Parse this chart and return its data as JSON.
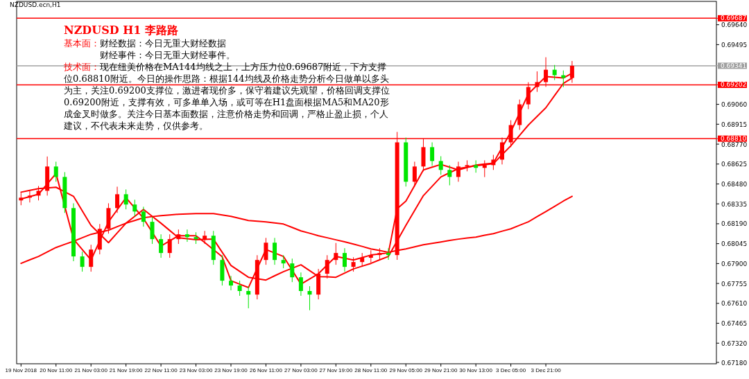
{
  "chart_data": {
    "type": "candlestick",
    "title": "NZDUSD H1 李路路",
    "annotations": [
      "NZDUSD.ecn,H1",
      "基本面：",
      "财经数据：今日无重大财经数据",
      "财经事件：今日无重大财经事件。",
      "技术面：",
      "现在纽美价格在MA144均线之上，上方压力位0.69687附近，下方支撑位0.68810附近。今日的操作思路：根据144均线及价格走势分析今日做单以多头为主，关注0.69200支撑位，激进者现价多，保守着建议先观望，价格回调支撑位0.69200附近，支撑有效，可多单单入场，或可等在H1盘面根据MA5和MA20形成金叉时做多。关注今日基本面数据，注意价格走势和回调，严格止盈止损，个人建议，不代表未来走势，仅供参考。"
    ],
    "categories": [
      "19 Nov 2018",
      null,
      null,
      null,
      "20 Nov 11:00",
      null,
      null,
      null,
      "21 Nov 03:00",
      null,
      null,
      null,
      "21 Nov 19:00",
      null,
      null,
      null,
      "22 Nov 11:00",
      null,
      null,
      null,
      "23 Nov 03:00",
      null,
      null,
      null,
      "23 Nov 19:00",
      null,
      null,
      null,
      "26 Nov 11:00",
      null,
      null,
      null,
      "27 Nov 03:00",
      null,
      null,
      null,
      "27 Nov 19:00",
      null,
      null,
      null,
      "28 Nov 11:00",
      null,
      null,
      null,
      "29 Nov 05:00",
      null,
      null,
      null,
      "29 Nov 21:00",
      null,
      null,
      null,
      "30 Nov 13:00",
      null,
      null,
      null,
      "3 Dec 05:00",
      null,
      null,
      null,
      "3 Dec 21:00",
      null,
      null,
      null,
      null,
      null,
      null,
      null,
      null,
      null,
      null,
      null,
      null,
      null,
      null,
      null,
      null,
      null,
      null,
      null
    ],
    "ohlc": [
      [
        0.6836,
        0.68415,
        0.68325,
        0.6838
      ],
      [
        0.6838,
        0.6843,
        0.68345,
        0.68395
      ],
      [
        0.68395,
        0.68465,
        0.6836,
        0.6843
      ],
      [
        0.6843,
        0.6868,
        0.68395,
        0.68607
      ],
      [
        0.68607,
        0.68642,
        0.68496,
        0.68531
      ],
      [
        0.68531,
        0.68566,
        0.68269,
        0.68304
      ],
      [
        0.68304,
        0.68339,
        0.67917,
        0.67952
      ],
      [
        0.67952,
        0.67987,
        0.67841,
        0.67876
      ],
      [
        0.67876,
        0.68037,
        0.67841,
        0.68002
      ],
      [
        0.68002,
        0.68188,
        0.67967,
        0.68153
      ],
      [
        0.68153,
        0.68339,
        0.68118,
        0.68304
      ],
      [
        0.68304,
        0.6846,
        0.68269,
        0.68405
      ],
      [
        0.68405,
        0.6844,
        0.68295,
        0.6833
      ],
      [
        0.6833,
        0.68365,
        0.68244,
        0.68279
      ],
      [
        0.68279,
        0.68314,
        0.68169,
        0.68204
      ],
      [
        0.68204,
        0.68239,
        0.68043,
        0.68078
      ],
      [
        0.68078,
        0.68113,
        0.67942,
        0.67977
      ],
      [
        0.67977,
        0.68113,
        0.67942,
        0.68078
      ],
      [
        0.68078,
        0.68148,
        0.68043,
        0.68113
      ],
      [
        0.68113,
        0.68148,
        0.68058,
        0.68093
      ],
      [
        0.68093,
        0.68128,
        0.68043,
        0.68078
      ],
      [
        0.68078,
        0.68138,
        0.68043,
        0.68103
      ],
      [
        0.68103,
        0.68138,
        0.67891,
        0.67926
      ],
      [
        0.67926,
        0.67961,
        0.6774,
        0.67775
      ],
      [
        0.67775,
        0.6781,
        0.67705,
        0.6774
      ],
      [
        0.6774,
        0.67775,
        0.67665,
        0.677
      ],
      [
        0.677,
        0.67735,
        0.67574,
        0.67674
      ],
      [
        0.67674,
        0.67961,
        0.67639,
        0.67926
      ],
      [
        0.67926,
        0.68087,
        0.67891,
        0.68052
      ],
      [
        0.68052,
        0.68087,
        0.67891,
        0.67926
      ],
      [
        0.67926,
        0.67961,
        0.67866,
        0.67901
      ],
      [
        0.67901,
        0.67936,
        0.67765,
        0.678
      ],
      [
        0.678,
        0.67835,
        0.67665,
        0.677
      ],
      [
        0.677,
        0.67735,
        0.6756,
        0.67674
      ],
      [
        0.67674,
        0.67861,
        0.67639,
        0.67826
      ],
      [
        0.67826,
        0.67961,
        0.67791,
        0.67926
      ],
      [
        0.67926,
        0.6805,
        0.67891,
        0.67977
      ],
      [
        0.67977,
        0.68012,
        0.67841,
        0.67876
      ],
      [
        0.67876,
        0.67946,
        0.67841,
        0.67911
      ],
      [
        0.67911,
        0.67977,
        0.67876,
        0.67942
      ],
      [
        0.67942,
        0.67997,
        0.67907,
        0.67962
      ],
      [
        0.67962,
        0.68012,
        0.67927,
        0.67977
      ],
      [
        0.67977,
        0.68012,
        0.67927,
        0.67962
      ],
      [
        0.67962,
        0.68859,
        0.67927,
        0.68783
      ],
      [
        0.68783,
        0.68818,
        0.68461,
        0.68496
      ],
      [
        0.68496,
        0.68642,
        0.68461,
        0.68607
      ],
      [
        0.68607,
        0.6881,
        0.68572,
        0.68748
      ],
      [
        0.68748,
        0.68783,
        0.68612,
        0.68647
      ],
      [
        0.68647,
        0.68682,
        0.68547,
        0.68582
      ],
      [
        0.68582,
        0.68617,
        0.6847,
        0.68531
      ],
      [
        0.68531,
        0.68642,
        0.68496,
        0.68607
      ],
      [
        0.68607,
        0.68652,
        0.68572,
        0.68617
      ],
      [
        0.68617,
        0.68652,
        0.68562,
        0.68597
      ],
      [
        0.68597,
        0.68652,
        0.6853,
        0.68617
      ],
      [
        0.68617,
        0.68692,
        0.68582,
        0.68657
      ],
      [
        0.68657,
        0.68818,
        0.68622,
        0.68783
      ],
      [
        0.68783,
        0.68944,
        0.68748,
        0.68909
      ],
      [
        0.68909,
        0.69095,
        0.68874,
        0.6906
      ],
      [
        0.6906,
        0.69221,
        0.69025,
        0.69186
      ],
      [
        0.69186,
        0.693,
        0.69151,
        0.69222
      ],
      [
        0.69222,
        0.69403,
        0.69187,
        0.69312
      ],
      [
        0.69312,
        0.69347,
        0.69237,
        0.69272
      ],
      [
        0.69272,
        0.69307,
        0.69185,
        0.69252
      ],
      [
        0.69252,
        0.69376,
        0.69217,
        0.69341
      ],
      null,
      null,
      null,
      null,
      null,
      null,
      null,
      null,
      null,
      null,
      null,
      null,
      null,
      null,
      null,
      null
    ],
    "colors": [
      "#ff0000",
      "#ff0000",
      "#ff0000",
      "#ff0000",
      "#00e600",
      "#00e600",
      "#00e600",
      "#00e600",
      "#ff0000",
      "#ff0000",
      "#ff0000",
      "#ff0000",
      "#00e600",
      "#00e600",
      "#00e600",
      "#00e600",
      "#00e600",
      "#ff0000",
      "#ff0000",
      "#00e600",
      "#00e600",
      "#ff0000",
      "#00e600",
      "#00e600",
      "#00e600",
      "#00e600",
      "#00e600",
      "#ff0000",
      "#ff0000",
      "#00e600",
      "#00e600",
      "#00e600",
      "#00e600",
      "#00e600",
      "#ff0000",
      "#ff0000",
      "#ff0000",
      "#00e600",
      "#ff0000",
      "#ff0000",
      "#ff0000",
      "#ff0000",
      "#00e600",
      "#ff0000",
      "#00e600",
      "#ff0000",
      "#ff0000",
      "#00e600",
      "#00e600",
      "#00e600",
      "#ff0000",
      "#ff0000",
      "#00e600",
      "#ff0000",
      "#ff0000",
      "#ff0000",
      "#ff0000",
      "#ff0000",
      "#ff0000",
      "#ff0000",
      "#ff0000",
      "#00e600",
      "#00e600",
      "#ff0000",
      null,
      null,
      null,
      null,
      null,
      null,
      null,
      null,
      null,
      null,
      null,
      null,
      null,
      null,
      null,
      null
    ],
    "series": [
      {
        "type": "line",
        "color": "#ff0000",
        "values": [
          0.6837,
          0.68388,
          0.68405,
          0.6848,
          0.68556,
          0.68317,
          0.68078,
          0.68002,
          0.67926,
          0.68065,
          0.68204,
          0.68292,
          0.6838,
          0.68305,
          0.68229,
          0.68128,
          0.68027,
          0.68065,
          0.68103,
          0.68103,
          0.68103,
          0.68053,
          0.68002,
          0.6795,
          0.67775,
          0.6775,
          0.67725,
          0.67864,
          0.68002,
          0.67977,
          0.67952,
          0.67851,
          0.6775,
          0.67788,
          0.67826,
          0.67889,
          0.67952,
          0.67939,
          0.67926,
          0.67944,
          0.67962,
          0.6797,
          0.67977,
          0.683,
          0.68355,
          0.68469,
          0.68582,
          0.68602,
          0.68622,
          0.68602,
          0.68582,
          0.686,
          0.68617,
          0.68625,
          0.68632,
          0.68746,
          0.68859,
          0.68998,
          0.69136,
          0.69199,
          0.69262,
          0.69257,
          0.69252,
          0.69287,
          null,
          null,
          null,
          null,
          null,
          null,
          null,
          null,
          null,
          null,
          null,
          null,
          null,
          null,
          null,
          null
        ]
      },
      {
        "type": "line",
        "color": "#ff0000",
        "values": [
          0.6842,
          0.68433,
          0.68446,
          0.68451,
          0.68456,
          0.68423,
          0.6839,
          0.68284,
          0.68178,
          0.68115,
          0.68052,
          0.68123,
          0.68194,
          0.68244,
          0.68294,
          0.68244,
          0.68194,
          0.68141,
          0.68088,
          0.68081,
          0.68073,
          0.68076,
          0.68078,
          0.67982,
          0.67886,
          0.67843,
          0.678,
          0.6779,
          0.6778,
          0.67811,
          0.67841,
          0.67866,
          0.67891,
          0.67848,
          0.67805,
          0.67803,
          0.678,
          0.67831,
          0.67861,
          0.67881,
          0.67901,
          0.67927,
          0.67952,
          0.68065,
          0.68178,
          0.68287,
          0.68395,
          0.68463,
          0.68531,
          0.68562,
          0.68592,
          0.68602,
          0.68612,
          0.6862,
          0.68627,
          0.68693,
          0.68758,
          0.68834,
          0.68909,
          0.68972,
          0.69035,
          0.69124,
          0.69212,
          0.69252,
          null,
          null,
          null,
          null,
          null,
          null,
          null,
          null,
          null,
          null,
          null,
          null,
          null,
          null,
          null,
          null
        ]
      },
      {
        "type": "line",
        "color": "#ff0000",
        "values": [
          0.67901,
          0.67927,
          0.67952,
          0.67985,
          0.68017,
          0.6804,
          0.68062,
          0.68088,
          0.68113,
          0.68128,
          0.68143,
          0.68169,
          0.68194,
          0.68214,
          0.68234,
          0.68242,
          0.68249,
          0.68254,
          0.68259,
          0.68262,
          0.68264,
          0.68264,
          0.68264,
          0.68254,
          0.68244,
          0.68229,
          0.68214,
          0.68209,
          0.68204,
          0.68196,
          0.68188,
          0.68163,
          0.68138,
          0.68121,
          0.68103,
          0.68088,
          0.68073,
          0.68058,
          0.68042,
          0.68025,
          0.68007,
          0.67995,
          0.67982,
          0.67995,
          0.68007,
          0.68022,
          0.68037,
          0.68047,
          0.68057,
          0.68068,
          0.68078,
          0.68086,
          0.68093,
          0.68106,
          0.68118,
          0.68136,
          0.68153,
          0.68179,
          0.68204,
          0.68242,
          0.68279,
          0.68317,
          0.68355,
          0.6839,
          null,
          null,
          null,
          null,
          null,
          null,
          null,
          null,
          null,
          null,
          null,
          null,
          null,
          null,
          null,
          null
        ]
      }
    ],
    "ylim": [
      0.6717,
      0.6981
    ],
    "yticks": [
      {
        "value": 0.6964,
        "label": "0.69640"
      },
      {
        "value": 0.69495,
        "label": "0.69495"
      },
      {
        "value": 0.6906,
        "label": "0.69060"
      },
      {
        "value": 0.68915,
        "label": "0.68915"
      },
      {
        "value": 0.6877,
        "label": "0.68770"
      },
      {
        "value": 0.68625,
        "label": "0.68625"
      },
      {
        "value": 0.6848,
        "label": "0.68480"
      },
      {
        "value": 0.68335,
        "label": "0.68335"
      },
      {
        "value": 0.6819,
        "label": "0.68190"
      },
      {
        "value": 0.68045,
        "label": "0.68045"
      },
      {
        "value": 0.679,
        "label": "0.67900"
      },
      {
        "value": 0.67755,
        "label": "0.67755"
      },
      {
        "value": 0.6761,
        "label": "0.67610"
      },
      {
        "value": 0.67465,
        "label": "0.67465"
      },
      {
        "value": 0.6732,
        "label": "0.67320"
      },
      {
        "value": 0.6718,
        "label": "0.67180"
      }
    ],
    "ref_lines": [
      {
        "axis": "y",
        "value": 0.69687,
        "label": "0.69687",
        "color": "#ff0000"
      },
      {
        "axis": "y",
        "value": 0.69341,
        "label": "0.69341",
        "color": "#a0a0a0"
      },
      {
        "axis": "y",
        "value": 0.69202,
        "label": "0.69202",
        "color": "#ff0000"
      },
      {
        "axis": "y",
        "value": 0.6881,
        "label": "0.68810",
        "color": "#ff0000"
      }
    ],
    "grid": false
  }
}
